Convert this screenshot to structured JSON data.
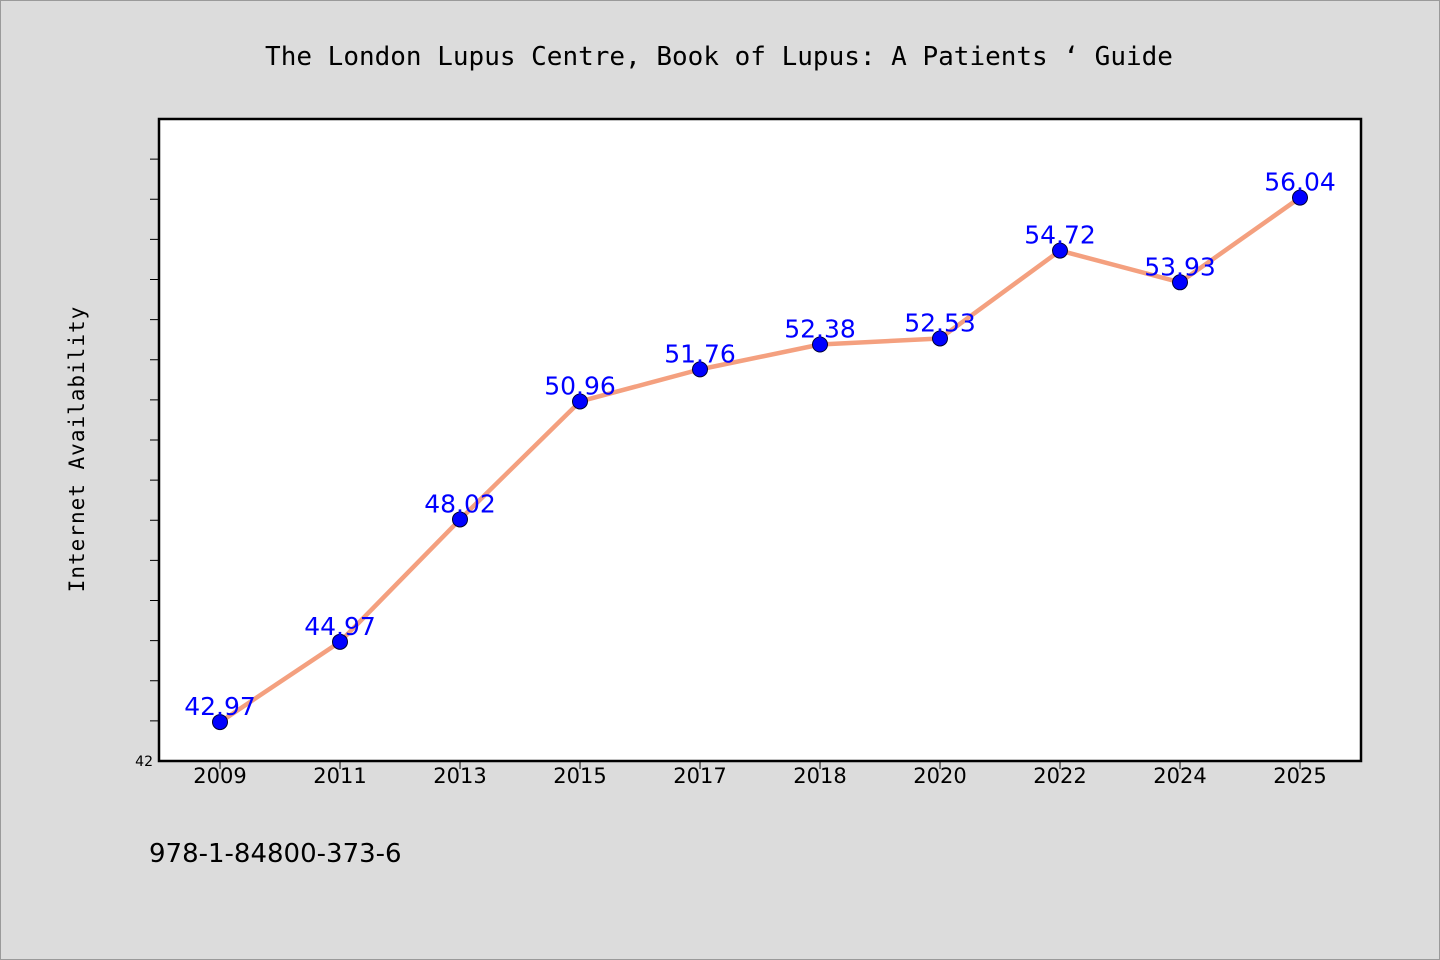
{
  "chart_data": {
    "type": "line",
    "title": "The London Lupus Centre, Book of Lupus: A Patients ‘ Guide",
    "xlabel": "",
    "ylabel": "Internet Availability",
    "categories": [
      "2009",
      "2011",
      "2013",
      "2015",
      "2017",
      "2018",
      "2020",
      "2022",
      "2024",
      "2025"
    ],
    "series": [
      {
        "values": [
          42.97,
          44.97,
          48.02,
          50.96,
          51.76,
          52.38,
          52.53,
          54.72,
          53.93,
          56.04
        ],
        "labels": [
          "42.97",
          "44.97",
          "48.02",
          "50.96",
          "51.76",
          "52.38",
          "52.53",
          "54.72",
          "53.93",
          "56.04"
        ]
      }
    ],
    "ylim": [
      42,
      58
    ],
    "yticks_labeled": [
      "42"
    ],
    "grid": false,
    "legend": "none",
    "colors": {
      "line": "#f4a07f",
      "marker": "#0000ff",
      "label": "#0000ff",
      "background": "#dcdcdc",
      "plot_background": "#ffffff"
    }
  },
  "footer": {
    "isbn": "978-1-84800-373-6"
  }
}
